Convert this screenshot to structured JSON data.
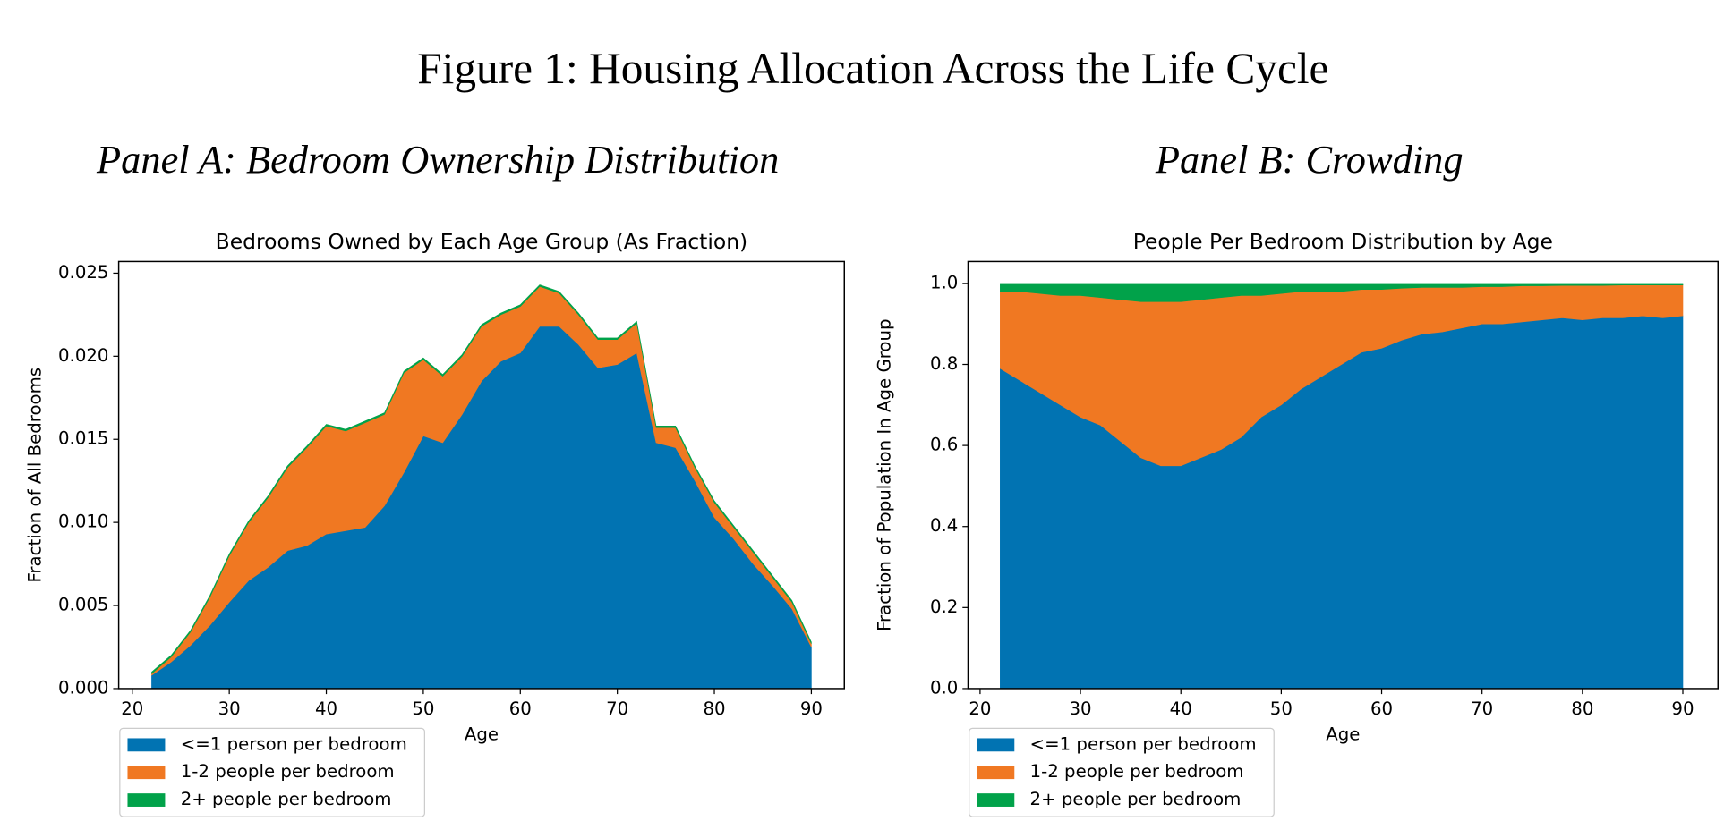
{
  "title": "Figure 1: Housing Allocation Across the Life Cycle",
  "panels": [
    {
      "title": "Panel A: Bedroom Ownership Distribution"
    },
    {
      "title": "Panel B: Crowding"
    }
  ],
  "chart_data": [
    {
      "type": "stackplot",
      "title": "Bedrooms Owned by Each Age Group (As Fraction)",
      "xlabel": "Age",
      "ylabel": "Fraction of All Bedrooms",
      "x": [
        22,
        24,
        26,
        28,
        30,
        32,
        34,
        36,
        38,
        40,
        42,
        44,
        46,
        48,
        50,
        52,
        54,
        56,
        58,
        60,
        62,
        64,
        66,
        68,
        70,
        72,
        74,
        76,
        78,
        80,
        82,
        84,
        86,
        88,
        90
      ],
      "series": [
        {
          "name": "<=1 person per bedroom",
          "color": "#0173b2",
          "values": [
            0.0008,
            0.0016,
            0.0026,
            0.0038,
            0.0052,
            0.0065,
            0.0073,
            0.0083,
            0.0086,
            0.0093,
            0.0095,
            0.0097,
            0.011,
            0.013,
            0.0152,
            0.0148,
            0.0165,
            0.0185,
            0.0197,
            0.0202,
            0.0218,
            0.0218,
            0.0207,
            0.0193,
            0.0195,
            0.0202,
            0.0148,
            0.0145,
            0.0125,
            0.0103,
            0.009,
            0.0075,
            0.0062,
            0.0048,
            0.0025
          ]
        },
        {
          "name": "1-2 people per bedroom",
          "color": "#f07822",
          "values": [
            0.0001,
            0.0003,
            0.0008,
            0.0017,
            0.0028,
            0.0035,
            0.0042,
            0.005,
            0.0059,
            0.0065,
            0.006,
            0.0063,
            0.0055,
            0.006,
            0.0046,
            0.004,
            0.0035,
            0.0033,
            0.0028,
            0.0028,
            0.0024,
            0.002,
            0.0018,
            0.0017,
            0.0015,
            0.0018,
            0.0009,
            0.0012,
            0.0008,
            0.0009,
            0.0007,
            0.0007,
            0.0005,
            0.0004,
            0.0002
          ]
        },
        {
          "name": "2+ people per bedroom",
          "color": "#01a24a",
          "values": [
            0.0001,
            0.0001,
            0.0001,
            0.0001,
            0.0001,
            0.0001,
            0.0001,
            0.0001,
            0.0001,
            0.0001,
            0.0001,
            0.0001,
            0.0001,
            0.0001,
            0.0001,
            0.0001,
            0.0001,
            0.0001,
            0.0001,
            0.0001,
            0.0001,
            0.0001,
            0.0001,
            0.0001,
            0.0001,
            0.0001,
            0.0001,
            0.0001,
            0.0001,
            0.0001,
            0.0001,
            0.0001,
            0.0001,
            0.0001,
            0.0001
          ]
        }
      ],
      "xlim": [
        18.6,
        93.4
      ],
      "xticks": [
        20,
        30,
        40,
        50,
        60,
        70,
        80,
        90
      ],
      "ylim": [
        0,
        0.0257
      ],
      "yticks": [
        {
          "value": 0,
          "label": "0.000"
        },
        {
          "value": 0.005,
          "label": "0.005"
        },
        {
          "value": 0.01,
          "label": "0.010"
        },
        {
          "value": 0.015,
          "label": "0.015"
        },
        {
          "value": 0.02,
          "label": "0.020"
        },
        {
          "value": 0.025,
          "label": "0.025"
        }
      ],
      "legend": "below left"
    },
    {
      "type": "stackplot",
      "title": "People Per Bedroom Distribution by Age",
      "xlabel": "Age",
      "ylabel": "Fraction of Population In Age Group",
      "x": [
        22,
        24,
        26,
        28,
        30,
        32,
        34,
        36,
        38,
        40,
        42,
        44,
        46,
        48,
        50,
        52,
        54,
        56,
        58,
        60,
        62,
        64,
        66,
        68,
        70,
        72,
        74,
        76,
        78,
        80,
        82,
        84,
        86,
        88,
        90
      ],
      "series": [
        {
          "name": "<=1 person per bedroom",
          "color": "#0173b2",
          "values": [
            0.79,
            0.76,
            0.73,
            0.7,
            0.67,
            0.65,
            0.61,
            0.57,
            0.55,
            0.55,
            0.57,
            0.59,
            0.62,
            0.67,
            0.7,
            0.74,
            0.77,
            0.8,
            0.83,
            0.84,
            0.86,
            0.875,
            0.88,
            0.89,
            0.9,
            0.9,
            0.905,
            0.91,
            0.915,
            0.91,
            0.915,
            0.915,
            0.92,
            0.915,
            0.92
          ]
        },
        {
          "name": "1-2 people per bedroom",
          "color": "#f07822",
          "values": [
            0.19,
            0.22,
            0.245,
            0.27,
            0.3,
            0.315,
            0.35,
            0.385,
            0.405,
            0.405,
            0.39,
            0.375,
            0.35,
            0.3,
            0.275,
            0.24,
            0.21,
            0.18,
            0.155,
            0.145,
            0.128,
            0.115,
            0.11,
            0.1,
            0.092,
            0.092,
            0.089,
            0.084,
            0.08,
            0.085,
            0.08,
            0.081,
            0.076,
            0.081,
            0.076
          ]
        },
        {
          "name": "2+ people per bedroom",
          "color": "#01a24a",
          "values": [
            0.02,
            0.02,
            0.025,
            0.03,
            0.03,
            0.035,
            0.04,
            0.045,
            0.045,
            0.045,
            0.04,
            0.035,
            0.03,
            0.03,
            0.025,
            0.02,
            0.02,
            0.02,
            0.015,
            0.015,
            0.012,
            0.01,
            0.01,
            0.01,
            0.008,
            0.008,
            0.006,
            0.006,
            0.005,
            0.005,
            0.005,
            0.004,
            0.004,
            0.004,
            0.004
          ]
        }
      ],
      "xlim": [
        18.8,
        93.5
      ],
      "xticks": [
        20,
        30,
        40,
        50,
        60,
        70,
        80,
        90
      ],
      "ylim": [
        0,
        1.054
      ],
      "yticks": [
        {
          "value": 0,
          "label": "0.0"
        },
        {
          "value": 0.2,
          "label": "0.2"
        },
        {
          "value": 0.4,
          "label": "0.4"
        },
        {
          "value": 0.6,
          "label": "0.6"
        },
        {
          "value": 0.8,
          "label": "0.8"
        },
        {
          "value": 1,
          "label": "1.0"
        }
      ],
      "legend": "below left"
    }
  ]
}
